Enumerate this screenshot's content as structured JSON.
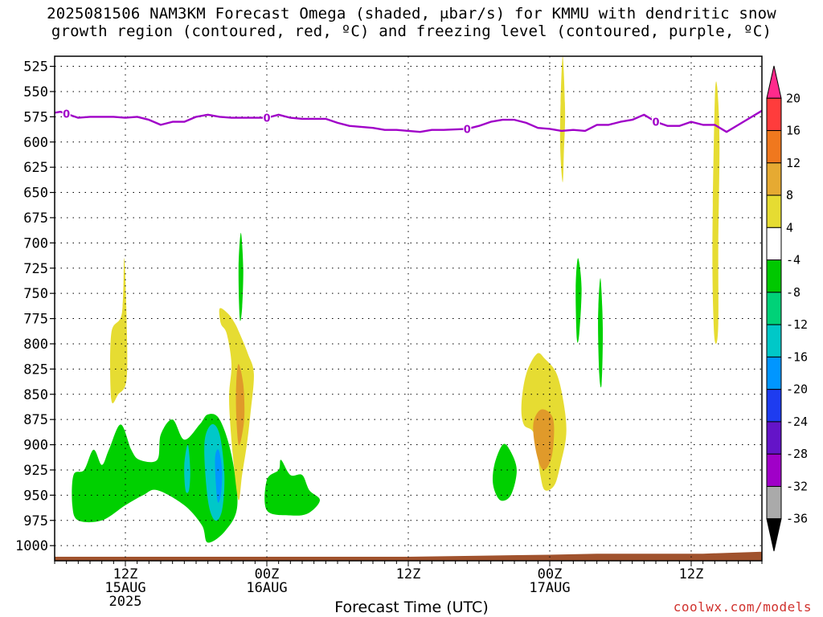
{
  "title": {
    "line1": "2025081506 NAM3KM Forecast Omega (shaded, μbar/s) for KMMU with dendritic snow",
    "line2": "growth region (contoured, red, ºC) and freezing level (contoured, purple, ºC)"
  },
  "xlabel": "Forecast Time (UTC)",
  "credit": "coolwx.com/models",
  "colors": {
    "freezing_line": "#a000c8",
    "ground": "#a0522d",
    "green": "#00d000",
    "yellow": "#e6dc32",
    "orange": "#e09a2a",
    "cyan": "#00c8c8",
    "blue": "#0096ff"
  },
  "chart_data": {
    "type": "heatmap",
    "title": "2025081506 NAM3KM Forecast Omega (shaded, μbar/s) for KMMU with dendritic snow growth region (contoured, red, ºC) and freezing level (contoured, purple, ºC)",
    "xlabel": "Forecast Time (UTC)",
    "ylabel": "",
    "x_range_hours": [
      0,
      60
    ],
    "y_axis": {
      "scale": "pressure (hPa)",
      "inverted": true,
      "ylim": [
        1015,
        515
      ]
    },
    "y_ticks": [
      525,
      550,
      575,
      600,
      625,
      650,
      675,
      700,
      725,
      750,
      775,
      800,
      825,
      850,
      875,
      900,
      925,
      950,
      975,
      1000
    ],
    "x_ticks": [
      {
        "hour": 6,
        "label": "12Z",
        "sub1": "15AUG",
        "sub2": "2025"
      },
      {
        "hour": 18,
        "label": "00Z",
        "sub1": "16AUG",
        "sub2": ""
      },
      {
        "hour": 30,
        "label": "12Z",
        "sub1": "",
        "sub2": ""
      },
      {
        "hour": 42,
        "label": "00Z",
        "sub1": "17AUG",
        "sub2": ""
      },
      {
        "hour": 54,
        "label": "12Z",
        "sub1": "",
        "sub2": ""
      }
    ],
    "grid": true,
    "colorbar": {
      "labels": [
        "20",
        "16",
        "12",
        "8",
        "4",
        "-4",
        "-8",
        "-12",
        "-16",
        "-20",
        "-24",
        "-28",
        "-32",
        "-36"
      ],
      "colors": [
        "#ff2a8c",
        "#ff3c3c",
        "#f0781e",
        "#e6aa32",
        "#e6dc32",
        "#ffffff",
        "#00c800",
        "#00d278",
        "#00c8c8",
        "#0096ff",
        "#1e3cf0",
        "#6414c8",
        "#a000c8",
        "#aaaaaa",
        "#000000"
      ]
    },
    "freezing_level": {
      "label": "0",
      "points": [
        [
          0,
          571
        ],
        [
          0.5,
          570
        ],
        [
          1,
          572
        ],
        [
          2,
          576
        ],
        [
          3,
          575
        ],
        [
          5,
          575
        ],
        [
          6,
          576
        ],
        [
          7,
          575
        ],
        [
          8,
          578
        ],
        [
          9,
          583
        ],
        [
          10,
          580
        ],
        [
          11,
          580
        ],
        [
          12,
          575
        ],
        [
          13,
          573
        ],
        [
          14,
          575
        ],
        [
          15,
          576
        ],
        [
          16,
          576
        ],
        [
          17,
          576
        ],
        [
          18,
          576
        ],
        [
          19,
          573
        ],
        [
          20,
          576
        ],
        [
          21,
          577
        ],
        [
          23,
          577
        ],
        [
          24,
          581
        ],
        [
          25,
          584
        ],
        [
          26,
          585
        ],
        [
          27,
          586
        ],
        [
          28,
          588
        ],
        [
          29,
          588
        ],
        [
          30,
          589
        ],
        [
          31,
          590
        ],
        [
          32,
          588
        ],
        [
          33,
          588
        ],
        [
          35,
          587
        ],
        [
          36,
          584
        ],
        [
          37,
          580
        ],
        [
          38,
          578
        ],
        [
          39,
          578
        ],
        [
          40,
          581
        ],
        [
          41,
          586
        ],
        [
          42,
          587
        ],
        [
          43,
          589
        ],
        [
          44,
          588
        ],
        [
          45,
          589
        ],
        [
          46,
          583
        ],
        [
          47,
          583
        ],
        [
          48,
          580
        ],
        [
          49,
          578
        ],
        [
          50,
          573
        ],
        [
          51,
          580
        ],
        [
          52,
          584
        ],
        [
          53,
          584
        ],
        [
          54,
          580
        ],
        [
          55,
          583
        ],
        [
          56,
          583
        ],
        [
          57,
          590
        ],
        [
          58,
          583
        ],
        [
          59,
          576
        ],
        [
          60,
          569
        ]
      ],
      "label_hours": [
        1,
        18,
        35,
        51
      ]
    },
    "omega_regions": [
      {
        "name": "green-low-left",
        "color": "green",
        "value": -6,
        "points": [
          [
            1.5,
            960
          ],
          [
            1.6,
            930
          ],
          [
            2.5,
            925
          ],
          [
            3.3,
            905
          ],
          [
            4,
            920
          ],
          [
            4.6,
            905
          ],
          [
            5.6,
            880
          ],
          [
            6.5,
            905
          ],
          [
            7.2,
            915
          ],
          [
            8.7,
            915
          ],
          [
            9,
            890
          ],
          [
            10,
            875
          ],
          [
            11,
            895
          ],
          [
            12.3,
            880
          ],
          [
            13,
            870
          ],
          [
            14,
            875
          ],
          [
            15,
            910
          ],
          [
            15.5,
            960
          ],
          [
            14.5,
            985
          ],
          [
            13,
            997
          ],
          [
            12.5,
            980
          ],
          [
            11,
            960
          ],
          [
            8.7,
            945
          ],
          [
            7.5,
            950
          ],
          [
            6,
            960
          ],
          [
            4,
            975
          ],
          [
            2,
            975
          ]
        ]
      },
      {
        "name": "cyan-core",
        "color": "cyan",
        "value": -14,
        "points": [
          [
            12.7,
            900
          ],
          [
            13.3,
            880
          ],
          [
            14,
            890
          ],
          [
            14.4,
            930
          ],
          [
            14.2,
            965
          ],
          [
            13.6,
            975
          ],
          [
            13,
            955
          ]
        ]
      },
      {
        "name": "blue-core",
        "color": "blue",
        "value": -18,
        "points": [
          [
            13.6,
            915
          ],
          [
            13.9,
            905
          ],
          [
            14.2,
            925
          ],
          [
            14.1,
            950
          ],
          [
            13.8,
            955
          ]
        ]
      },
      {
        "name": "cyan-small",
        "color": "cyan",
        "value": -14,
        "points": [
          [
            11,
            920
          ],
          [
            11.3,
            900
          ],
          [
            11.5,
            925
          ],
          [
            11.4,
            945
          ],
          [
            11.1,
            945
          ]
        ]
      },
      {
        "name": "green-mid",
        "color": "green",
        "value": -6,
        "points": [
          [
            18,
            935
          ],
          [
            19,
            925
          ],
          [
            19.2,
            915
          ],
          [
            20,
            930
          ],
          [
            21,
            930
          ],
          [
            21.6,
            945
          ],
          [
            22.5,
            955
          ],
          [
            21.5,
            968
          ],
          [
            20,
            970
          ],
          [
            18,
            965
          ]
        ]
      },
      {
        "name": "green-streak-a",
        "color": "green",
        "value": -6,
        "points": [
          [
            15.6,
            725
          ],
          [
            15.8,
            690
          ],
          [
            16,
            725
          ],
          [
            15.9,
            765
          ],
          [
            15.7,
            775
          ]
        ]
      },
      {
        "name": "green-right-blob",
        "color": "green",
        "value": -6,
        "points": [
          [
            37.3,
            920
          ],
          [
            38,
            900
          ],
          [
            38.6,
            905
          ],
          [
            39.2,
            925
          ],
          [
            38.7,
            950
          ],
          [
            37.8,
            955
          ],
          [
            37.2,
            940
          ]
        ]
      },
      {
        "name": "green-streak-b",
        "color": "green",
        "value": -6,
        "points": [
          [
            44.2,
            745
          ],
          [
            44.4,
            715
          ],
          [
            44.7,
            745
          ],
          [
            44.5,
            790
          ],
          [
            44.3,
            795
          ]
        ]
      },
      {
        "name": "green-streak-c",
        "color": "green",
        "value": -6,
        "points": [
          [
            46.1,
            775
          ],
          [
            46.3,
            735
          ],
          [
            46.5,
            785
          ],
          [
            46.4,
            840
          ],
          [
            46.2,
            830
          ]
        ]
      },
      {
        "name": "yellow-left-streak",
        "color": "yellow",
        "value": 5,
        "points": [
          [
            4.8,
            790
          ],
          [
            5.7,
            770
          ],
          [
            5.9,
            715
          ],
          [
            6.1,
            775
          ],
          [
            6.1,
            835
          ],
          [
            5.4,
            850
          ],
          [
            4.8,
            855
          ]
        ]
      },
      {
        "name": "yellow-mid",
        "color": "yellow",
        "value": 5,
        "points": [
          [
            14,
            765
          ],
          [
            14.7,
            770
          ],
          [
            15.3,
            780
          ],
          [
            15.7,
            790
          ],
          [
            16.4,
            810
          ],
          [
            16.9,
            830
          ],
          [
            16.6,
            870
          ],
          [
            16.3,
            900
          ],
          [
            15.9,
            930
          ],
          [
            15.6,
            955
          ],
          [
            15.2,
            920
          ],
          [
            14.9,
            880
          ],
          [
            14.8,
            850
          ],
          [
            15,
            820
          ],
          [
            14.6,
            790
          ],
          [
            14.1,
            780
          ]
        ]
      },
      {
        "name": "orange-mid",
        "color": "orange",
        "value": 9,
        "points": [
          [
            15.6,
            820
          ],
          [
            16,
            840
          ],
          [
            16.1,
            870
          ],
          [
            15.9,
            890
          ],
          [
            15.6,
            900
          ],
          [
            15.4,
            870
          ],
          [
            15.4,
            840
          ]
        ]
      },
      {
        "name": "yellow-right",
        "color": "yellow",
        "value": 5,
        "points": [
          [
            40,
            830
          ],
          [
            40.9,
            810
          ],
          [
            41.6,
            815
          ],
          [
            42.6,
            830
          ],
          [
            43.2,
            860
          ],
          [
            43.4,
            890
          ],
          [
            42.9,
            920
          ],
          [
            42.4,
            940
          ],
          [
            41.6,
            945
          ],
          [
            41.2,
            930
          ],
          [
            40.7,
            890
          ],
          [
            39.8,
            880
          ],
          [
            39.6,
            860
          ]
        ]
      },
      {
        "name": "orange-right",
        "color": "orange",
        "value": 9,
        "points": [
          [
            40.6,
            880
          ],
          [
            41.3,
            865
          ],
          [
            42.3,
            875
          ],
          [
            42.2,
            910
          ],
          [
            41.5,
            925
          ],
          [
            40.9,
            910
          ]
        ]
      },
      {
        "name": "yellow-top-streak",
        "color": "yellow",
        "value": 5,
        "points": [
          [
            42.9,
            570
          ],
          [
            43.1,
            515
          ],
          [
            43.3,
            570
          ],
          [
            43.2,
            610
          ],
          [
            43.1,
            640
          ],
          [
            42.9,
            610
          ]
        ]
      },
      {
        "name": "yellow-right-streak",
        "color": "yellow",
        "value": 5,
        "points": [
          [
            55.8,
            700
          ],
          [
            56,
            560
          ],
          [
            56.2,
            545
          ],
          [
            56.4,
            600
          ],
          [
            56.3,
            700
          ],
          [
            56.3,
            780
          ],
          [
            56.1,
            800
          ],
          [
            55.9,
            780
          ]
        ]
      }
    ],
    "ground_profile": [
      [
        0,
        1011
      ],
      [
        10,
        1011
      ],
      [
        20,
        1011
      ],
      [
        30,
        1011
      ],
      [
        36,
        1010
      ],
      [
        42,
        1009
      ],
      [
        46,
        1008
      ],
      [
        50,
        1008
      ],
      [
        55,
        1008
      ],
      [
        60,
        1006
      ]
    ]
  }
}
